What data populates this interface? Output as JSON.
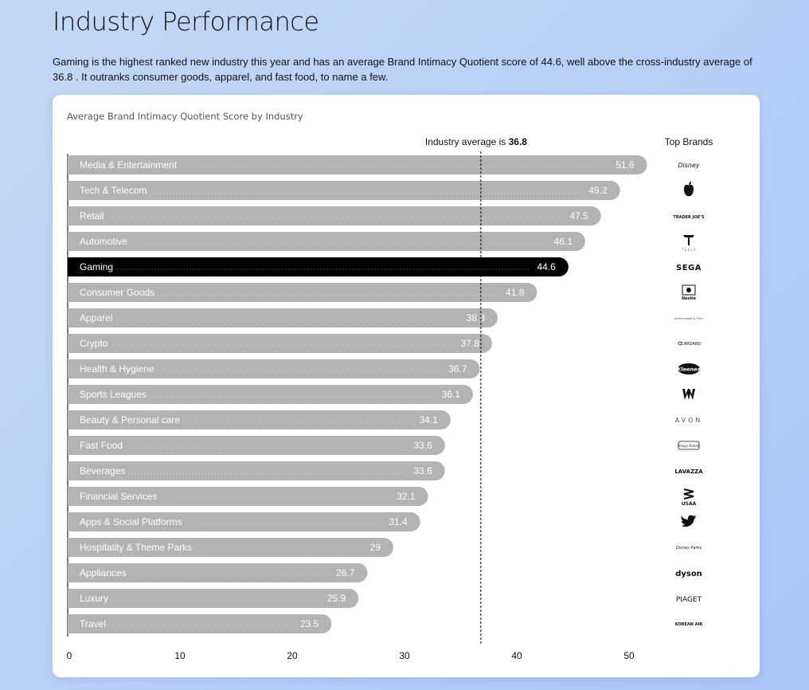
{
  "page": {
    "title": "Industry Performance",
    "intro": "Gaming is the highest ranked new industry this year and has an average Brand Intimacy Quotient score of 44.6, well above the cross-industry average of 36.8 . It outranks consumer goods, apparel, and fast food, to name a few."
  },
  "chart_data": {
    "type": "bar",
    "orientation": "horizontal",
    "title": "Average Brand Intimacy Quotient Score by Industry",
    "reference_line": {
      "value": 36.8,
      "label_prefix": "Industry average is",
      "label_value": "36.8"
    },
    "brands_header": "Top Brands",
    "xlim": [
      0,
      50
    ],
    "x_ticks": [
      "0",
      "10",
      "20",
      "30",
      "40",
      "50"
    ],
    "grid": false,
    "highlight_category": "Gaming",
    "colors": {
      "bar": "#b3b3b3",
      "highlight": "#000000",
      "bar_text": "#ffffff",
      "reference_line": "#000000"
    },
    "bars": [
      {
        "category": "Media & Entertainment",
        "value": 51.6,
        "label": "51.6",
        "brand": "Disney",
        "brand_icon": "disney-logo"
      },
      {
        "category": "Tech & Telecom",
        "value": 49.2,
        "label": "49.2",
        "brand": "Apple",
        "brand_icon": "apple-logo"
      },
      {
        "category": "Retail",
        "value": 47.5,
        "label": "47.5",
        "brand": "TRADER JOE'S",
        "brand_icon": "trader-joes-logo"
      },
      {
        "category": "Automotive",
        "value": 46.1,
        "label": "46.1",
        "brand": "TESLA",
        "brand_icon": "tesla-logo"
      },
      {
        "category": "Gaming",
        "value": 44.6,
        "label": "44.6",
        "brand": "SEGA",
        "brand_icon": "sega-logo"
      },
      {
        "category": "Consumer Goods",
        "value": 41.8,
        "label": "41.8",
        "brand": "Nestlé",
        "brand_icon": "nestle-logo"
      },
      {
        "category": "Apparel",
        "value": 38.3,
        "label": "38.3",
        "brand": "Abercrombie & Fitch",
        "brand_icon": "abercrombie-logo"
      },
      {
        "category": "Crypto",
        "value": 37.8,
        "label": "37.8",
        "brand": "CARDANO",
        "brand_icon": "cardano-logo"
      },
      {
        "category": "Health & Hygiene",
        "value": 36.7,
        "label": "36.7",
        "brand": "Kleenex",
        "brand_icon": "kleenex-logo"
      },
      {
        "category": "Sports Leagues",
        "value": 36.1,
        "label": "36.1",
        "brand": "WWE",
        "brand_icon": "wwe-logo"
      },
      {
        "category": "Beauty & Personal care",
        "value": 34.1,
        "label": "34.1",
        "brand": "AVON",
        "brand_icon": "avon-logo"
      },
      {
        "category": "Fast Food",
        "value": 33.6,
        "label": "33.6",
        "brand": "Krispy Kreme",
        "brand_icon": "krispy-kreme-logo"
      },
      {
        "category": "Beverages",
        "value": 33.6,
        "label": "33.6",
        "brand": "LAVAZZA",
        "brand_icon": "lavazza-logo"
      },
      {
        "category": "Financial Services",
        "value": 32.1,
        "label": "32.1",
        "brand": "USAA",
        "brand_icon": "usaa-logo"
      },
      {
        "category": "Apps & Social Platforms",
        "value": 31.4,
        "label": "31.4",
        "brand": "Twitter",
        "brand_icon": "twitter-logo"
      },
      {
        "category": "Hospitality & Theme Parks",
        "value": 29,
        "label": "29",
        "brand": "Disney Parks",
        "brand_icon": "disney-parks-logo"
      },
      {
        "category": "Appliances",
        "value": 26.7,
        "label": "26.7",
        "brand": "dyson",
        "brand_icon": "dyson-logo"
      },
      {
        "category": "Luxury",
        "value": 25.9,
        "label": "25.9",
        "brand": "PIAGET",
        "brand_icon": "piaget-logo"
      },
      {
        "category": "Travel",
        "value": 23.5,
        "label": "23.5",
        "brand": "KOREAN AIR",
        "brand_icon": "korean-air-logo"
      }
    ]
  }
}
